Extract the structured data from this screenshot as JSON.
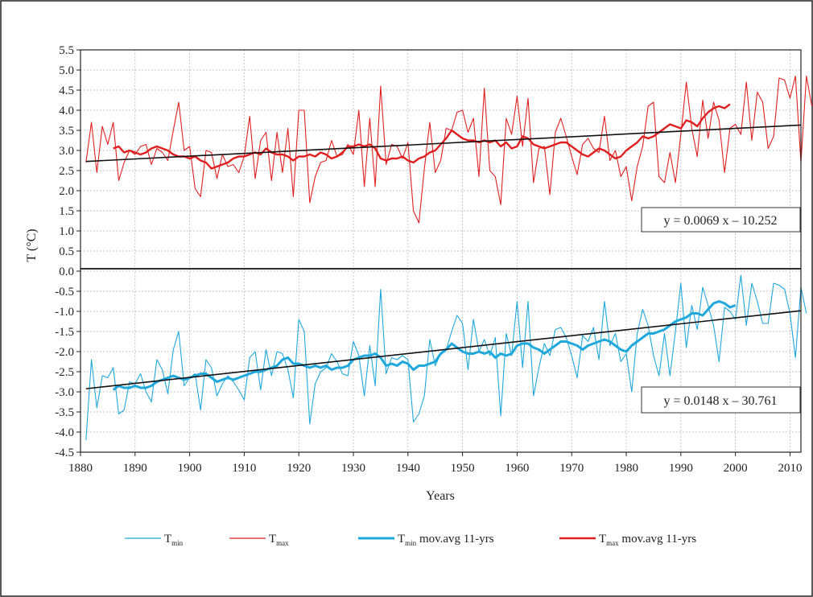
{
  "chart_data": {
    "type": "line",
    "xlabel": "Years",
    "ylabel": "T (°C)",
    "xlim": [
      1880,
      2012
    ],
    "ylim": [
      -4.5,
      5.5
    ],
    "x_ticks": [
      1880,
      1890,
      1900,
      1910,
      1920,
      1930,
      1940,
      1950,
      1960,
      1970,
      1980,
      1990,
      2000,
      2010
    ],
    "x_tick_labels": [
      "1880",
      "1890",
      "1900",
      "1910",
      "1920",
      "1930",
      "1940",
      "1950",
      "1960",
      "1970",
      "1980",
      "1990",
      "2000",
      "2010"
    ],
    "y_ticks": [
      5.5,
      5.0,
      4.5,
      4.0,
      3.5,
      3.0,
      2.5,
      2.0,
      1.5,
      1.0,
      0.5,
      0.0,
      -0.5,
      -1.0,
      -1.5,
      -2.0,
      -2.5,
      -3.0,
      -3.5,
      -4.0,
      -4.5
    ],
    "y_tick_labels": [
      "5.5",
      "5.0",
      "4.5",
      "4.0",
      "3.5",
      "3.0",
      "2.5",
      "2.0",
      "1.5",
      "1.0",
      "0.5",
      "0.0",
      "-0.5",
      "-1.0",
      "-1.5",
      "-2.0",
      "-2.5",
      "-3.0",
      "-3.5",
      "-4.0",
      "-4.5"
    ],
    "grid": true,
    "legend_position": "bottom",
    "legend": [
      {
        "key": "tmin",
        "base": "T",
        "sub": "min",
        "suffix": ""
      },
      {
        "key": "tmax",
        "base": "T",
        "sub": "max",
        "suffix": ""
      },
      {
        "key": "tmin_ma",
        "base": "T",
        "sub": "min",
        "suffix": " mov.avg 11-yrs"
      },
      {
        "key": "tmax_ma",
        "base": "T",
        "sub": "max",
        "suffix": " mov.avg 11-yrs"
      }
    ],
    "colors": {
      "tmin": "#1fa8dc",
      "tmax": "#e02020",
      "trend": "#111111"
    },
    "x_start": 1881,
    "tmax": {
      "values": [
        2.7,
        3.7,
        2.45,
        3.6,
        3.15,
        3.7,
        2.25,
        2.7,
        3.0,
        2.9,
        3.1,
        3.15,
        2.65,
        3.05,
        2.95,
        2.75,
        3.5,
        4.2,
        3.0,
        3.1,
        2.05,
        1.85,
        3.0,
        2.95,
        2.3,
        2.9,
        2.6,
        2.65,
        2.45,
        2.85,
        3.85,
        2.3,
        3.25,
        3.45,
        2.25,
        3.45,
        2.45,
        3.55,
        1.85,
        4.0,
        4.0,
        1.7,
        2.35,
        2.7,
        2.75,
        3.25,
        2.85,
        2.9,
        3.15,
        2.9,
        4.0,
        2.1,
        3.8,
        2.1,
        4.6,
        2.65,
        3.15,
        3.1,
        2.8,
        3.2,
        1.5,
        1.2,
        2.55,
        3.7,
        2.45,
        2.75,
        3.55,
        3.5,
        3.95,
        4.0,
        3.45,
        3.8,
        2.35,
        4.55,
        2.5,
        2.35,
        1.65,
        3.8,
        3.4,
        4.35,
        3.1,
        4.3,
        2.2,
        3.05,
        3.1,
        1.9,
        3.45,
        3.8,
        3.35,
        2.85,
        2.4,
        3.15,
        3.3,
        3.05,
        2.95,
        3.85,
        2.75,
        3.0,
        2.35,
        2.6,
        1.75,
        2.6,
        3.1,
        4.1,
        4.2,
        2.35,
        2.2,
        2.95,
        2.2,
        3.4,
        4.7,
        3.55,
        2.85,
        4.25,
        3.3,
        4.2,
        3.75,
        2.45,
        3.55,
        3.65,
        3.4,
        4.7,
        3.25,
        4.45,
        4.2,
        3.05,
        3.35,
        4.8,
        4.75,
        4.3,
        4.85,
        2.7,
        4.85,
        4.1
      ],
      "ma_start": 1886,
      "moving_avg": [
        3.05,
        3.1,
        2.95,
        3.0,
        2.95,
        2.9,
        2.95,
        3.05,
        3.1,
        3.05,
        3.0,
        2.9,
        2.85,
        2.85,
        2.8,
        2.85,
        2.75,
        2.7,
        2.55,
        2.6,
        2.65,
        2.7,
        2.8,
        2.85,
        2.85,
        2.9,
        2.95,
        2.9,
        3.05,
        2.95,
        2.9,
        2.9,
        2.85,
        2.75,
        2.85,
        2.85,
        2.9,
        2.85,
        2.95,
        2.9,
        2.8,
        2.85,
        2.95,
        3.1,
        3.1,
        3.15,
        3.1,
        3.15,
        3.05,
        2.8,
        2.75,
        2.8,
        2.8,
        2.85,
        2.75,
        2.7,
        2.8,
        2.85,
        2.95,
        3.0,
        3.15,
        3.3,
        3.5,
        3.4,
        3.3,
        3.25,
        3.25,
        3.2,
        3.25,
        3.2,
        3.25,
        3.1,
        3.2,
        3.05,
        3.1,
        3.35,
        3.3,
        3.15,
        3.1,
        3.05,
        3.1,
        3.15,
        3.2,
        3.2,
        3.1,
        3.0,
        2.9,
        2.85,
        2.95,
        3.05,
        3.0,
        2.9,
        2.8,
        2.85,
        3.0,
        3.1,
        3.2,
        3.35,
        3.3,
        3.35,
        3.45,
        3.55,
        3.65,
        3.6,
        3.55,
        3.75,
        3.7,
        3.6,
        3.8,
        3.95,
        4.05,
        4.1,
        4.05,
        4.15
      ],
      "trend": {
        "equation": "y = 0.0069 x – 10.252",
        "slope": 0.0069,
        "intercept": -10.252
      }
    },
    "tmin": {
      "values": [
        -4.2,
        -2.2,
        -3.4,
        -2.6,
        -2.65,
        -2.4,
        -3.55,
        -3.45,
        -2.75,
        -2.8,
        -2.55,
        -3.0,
        -3.25,
        -2.2,
        -2.45,
        -3.05,
        -1.95,
        -1.5,
        -2.85,
        -2.65,
        -2.55,
        -3.45,
        -2.2,
        -2.4,
        -3.1,
        -2.8,
        -2.6,
        -2.75,
        -2.95,
        -3.2,
        -2.15,
        -2.0,
        -2.95,
        -1.95,
        -2.6,
        -2.0,
        -2.05,
        -2.45,
        -3.15,
        -1.2,
        -1.5,
        -3.8,
        -2.8,
        -2.5,
        -2.4,
        -2.05,
        -2.25,
        -2.55,
        -2.6,
        -1.75,
        -2.1,
        -3.1,
        -1.85,
        -2.85,
        -0.45,
        -2.55,
        -2.15,
        -2.2,
        -2.1,
        -2.2,
        -3.75,
        -3.55,
        -3.1,
        -1.7,
        -2.35,
        -2.05,
        -1.95,
        -1.5,
        -1.1,
        -1.3,
        -2.45,
        -1.2,
        -2.0,
        -1.7,
        -2.1,
        -1.65,
        -3.6,
        -1.55,
        -2.1,
        -0.75,
        -2.4,
        -0.75,
        -3.1,
        -2.4,
        -1.8,
        -2.1,
        -1.45,
        -1.4,
        -1.65,
        -2.1,
        -2.65,
        -1.6,
        -1.75,
        -1.4,
        -2.2,
        -0.75,
        -1.85,
        -1.55,
        -2.25,
        -2.05,
        -3.0,
        -1.55,
        -0.95,
        -1.35,
        -2.1,
        -2.6,
        -1.55,
        -2.6,
        -1.5,
        -0.3,
        -1.9,
        -0.85,
        -1.45,
        -0.4,
        -0.85,
        -1.35,
        -2.25,
        -0.9,
        -1.0,
        -1.2,
        -0.1,
        -1.35,
        -0.3,
        -0.75,
        -1.3,
        -1.3,
        -0.3,
        -0.35,
        -0.45,
        -1.05,
        -2.15,
        -0.4,
        -1.05
      ],
      "ma_start": 1886,
      "moving_avg": [
        -2.95,
        -2.85,
        -2.9,
        -2.9,
        -2.85,
        -2.9,
        -2.9,
        -2.85,
        -2.75,
        -2.7,
        -2.65,
        -2.6,
        -2.65,
        -2.7,
        -2.65,
        -2.6,
        -2.55,
        -2.55,
        -2.65,
        -2.75,
        -2.7,
        -2.65,
        -2.7,
        -2.65,
        -2.6,
        -2.55,
        -2.5,
        -2.5,
        -2.45,
        -2.4,
        -2.35,
        -2.2,
        -2.15,
        -2.3,
        -2.3,
        -2.35,
        -2.4,
        -2.35,
        -2.4,
        -2.35,
        -2.45,
        -2.4,
        -2.4,
        -2.35,
        -2.2,
        -2.15,
        -2.1,
        -2.1,
        -2.05,
        -2.15,
        -2.35,
        -2.3,
        -2.35,
        -2.25,
        -2.3,
        -2.45,
        -2.35,
        -2.35,
        -2.3,
        -2.25,
        -2.05,
        -1.95,
        -1.8,
        -1.9,
        -2.0,
        -2.05,
        -2.05,
        -2.0,
        -2.05,
        -2.0,
        -2.15,
        -2.05,
        -2.1,
        -2.05,
        -1.85,
        -1.8,
        -1.8,
        -1.9,
        -1.95,
        -2.05,
        -1.95,
        -1.85,
        -1.75,
        -1.75,
        -1.8,
        -1.85,
        -1.95,
        -1.85,
        -1.8,
        -1.75,
        -1.7,
        -1.75,
        -1.85,
        -1.95,
        -2.0,
        -1.85,
        -1.75,
        -1.65,
        -1.55,
        -1.55,
        -1.5,
        -1.45,
        -1.35,
        -1.25,
        -1.2,
        -1.15,
        -1.05,
        -1.05,
        -1.1,
        -0.95,
        -0.8,
        -0.75,
        -0.8,
        -0.9,
        -0.85
      ],
      "trend": {
        "equation": "y = 0.0148 x – 30.761",
        "slope": 0.0148,
        "intercept": -30.761
      }
    }
  }
}
